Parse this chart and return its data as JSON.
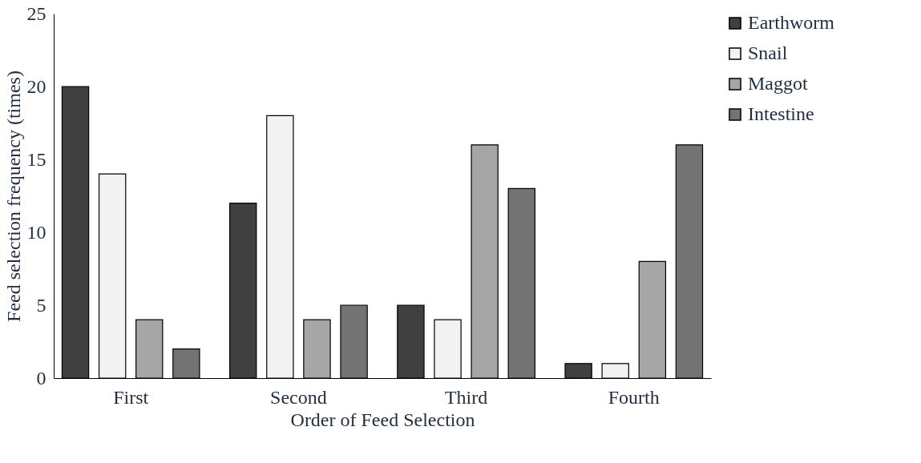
{
  "chart_data": {
    "type": "bar",
    "xlabel": "Order of Feed Selection",
    "ylabel": "Feed selection frequency (times)",
    "categories": [
      "First",
      "Second",
      "Third",
      "Fourth"
    ],
    "series": [
      {
        "name": "Earthworm",
        "color": "#404040",
        "values": [
          20,
          12,
          5,
          1
        ]
      },
      {
        "name": "Snail",
        "color": "#f2f2f2",
        "values": [
          14,
          18,
          4,
          1
        ]
      },
      {
        "name": "Maggot",
        "color": "#a6a6a6",
        "values": [
          4,
          4,
          16,
          8
        ]
      },
      {
        "name": "Intestine",
        "color": "#737373",
        "values": [
          2,
          5,
          13,
          16
        ]
      }
    ],
    "ylim": [
      0,
      25
    ],
    "yticks": [
      0,
      5,
      10,
      15,
      20,
      25
    ],
    "grid": false,
    "legend": "right"
  }
}
